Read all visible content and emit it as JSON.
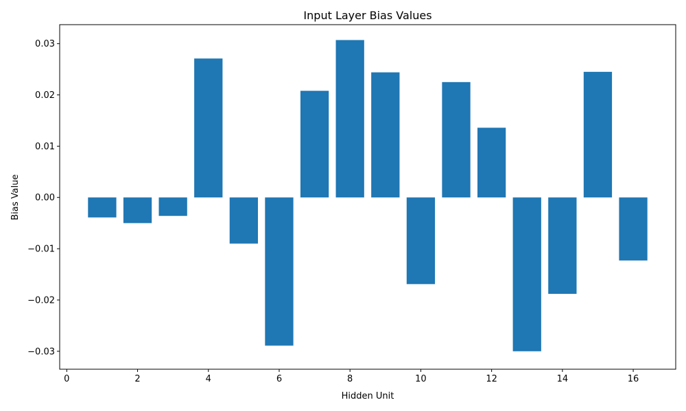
{
  "chart_data": {
    "type": "bar",
    "title": "Input Layer Bias Values",
    "xlabel": "Hidden Unit",
    "ylabel": "Bias Value",
    "color": "#1f77b4",
    "x": [
      1,
      2,
      3,
      4,
      5,
      6,
      7,
      8,
      9,
      10,
      11,
      12,
      13,
      14,
      15,
      16
    ],
    "values": [
      -0.0039,
      -0.005,
      -0.0036,
      0.0271,
      -0.009,
      -0.0289,
      0.0208,
      0.0307,
      0.0244,
      -0.0169,
      0.0225,
      0.0136,
      -0.03,
      -0.0188,
      0.0245,
      -0.0123
    ],
    "xlim": [
      -0.2,
      17.2
    ],
    "ylim": [
      -0.0335,
      0.0337
    ],
    "xticks": [
      0,
      2,
      4,
      6,
      8,
      10,
      12,
      14,
      16
    ],
    "xtick_labels": [
      "0",
      "2",
      "4",
      "6",
      "8",
      "10",
      "12",
      "14",
      "16"
    ],
    "yticks": [
      -0.03,
      -0.02,
      -0.01,
      0.0,
      0.01,
      0.02,
      0.03
    ],
    "ytick_labels": [
      "−0.03",
      "−0.02",
      "−0.01",
      "0.00",
      "0.01",
      "0.02",
      "0.03"
    ],
    "grid": false,
    "legend": "none"
  }
}
